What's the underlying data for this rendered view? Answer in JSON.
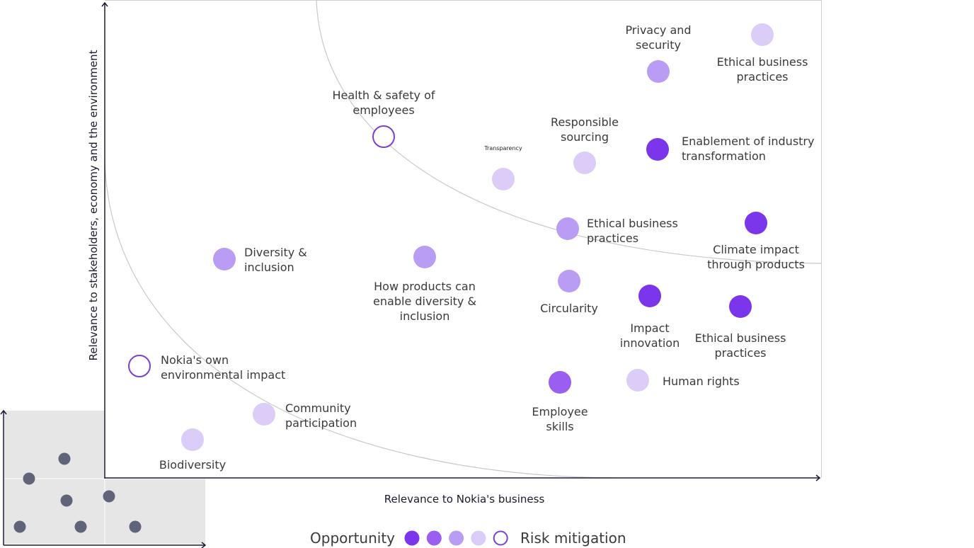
{
  "axes": {
    "x_label": "Relevance to Nokia's business",
    "y_label": "Relevance to stakeholders, economy and the environment"
  },
  "colors": {
    "level1": "#7b35ea",
    "level2": "#9a5ef0",
    "level3": "#b99cf3",
    "level4": "#dccdf8",
    "risk_outline": "#7b3fd1",
    "axis": "#1a1a3a",
    "inset_dot": "#5f6478"
  },
  "topics": [
    {
      "label": [
        "Privacy and",
        "security"
      ],
      "level": "level3"
    },
    {
      "label": [
        "Ethical business",
        "practices"
      ],
      "level": "level4"
    },
    {
      "label": [
        "Enablement of industry",
        "transformation"
      ],
      "level": "level1"
    },
    {
      "label": [
        "Responsible",
        "sourcing"
      ],
      "level": "level4"
    },
    {
      "label": [
        "Transparency"
      ],
      "level": "level4"
    },
    {
      "label": [
        "Health & safety of",
        "employees"
      ],
      "level": "risk"
    },
    {
      "label": [
        "Ethical business",
        "practices"
      ],
      "level": "level3"
    },
    {
      "label": [
        "Climate impact",
        "through products"
      ],
      "level": "level1"
    },
    {
      "label": [
        "Diversity &",
        "inclusion"
      ],
      "level": "level3"
    },
    {
      "label": [
        "How products can",
        "enable diversity &",
        "inclusion"
      ],
      "level": "level3"
    },
    {
      "label": [
        "Circularity"
      ],
      "level": "level3"
    },
    {
      "label": [
        "Impact",
        "innovation"
      ],
      "level": "level1"
    },
    {
      "label": [
        "Ethical business",
        "practices"
      ],
      "level": "level1"
    },
    {
      "label": [
        "Nokia's own",
        "environmental impact"
      ],
      "level": "risk"
    },
    {
      "label": [
        "Human rights"
      ],
      "level": "level4"
    },
    {
      "label": [
        "Employee",
        "skills"
      ],
      "level": "level2"
    },
    {
      "label": [
        "Community",
        "participation"
      ],
      "level": "level4"
    },
    {
      "label": [
        "Biodiversity"
      ],
      "level": "level4"
    }
  ],
  "legend": {
    "left_label": "Opportunity",
    "right_label": "Risk mitigation",
    "swatches": [
      "level1",
      "level2",
      "level3",
      "level4",
      "risk"
    ]
  }
}
